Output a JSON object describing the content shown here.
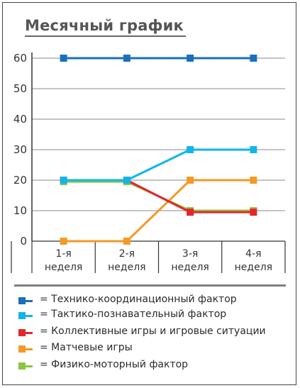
{
  "chart_data": {
    "type": "line",
    "title": "Месячный график",
    "categories": [
      [
        "1-я",
        "неделя"
      ],
      [
        "2-я",
        "неделя"
      ],
      [
        "3-я",
        "неделя"
      ],
      [
        "4-я",
        "неделя"
      ]
    ],
    "y_ticks": [
      "0",
      "10",
      "20",
      "30",
      "40",
      "50",
      "60"
    ],
    "ylim": [
      0,
      60
    ],
    "grid": true,
    "legend_position": "bottom",
    "series": [
      {
        "name": "Технико-координационный фактор",
        "color": "#1a6fbd",
        "values": [
          60,
          60,
          60,
          60
        ]
      },
      {
        "name": "Тактико-познавательный фактор",
        "color": "#12b5ea",
        "values": [
          20,
          20,
          30,
          30
        ]
      },
      {
        "name": "Коллективные игры и игровые ситуации",
        "color": "#e3262d",
        "values": [
          20,
          20,
          9.5,
          9.5
        ]
      },
      {
        "name": "Матчевые игры",
        "color": "#f39a26",
        "values": [
          0,
          0,
          20,
          20
        ]
      },
      {
        "name": "Физико-моторный фактор",
        "color": "#8cc63e",
        "values": [
          19.5,
          19.5,
          10,
          10
        ]
      }
    ],
    "legend_prefix": "="
  }
}
